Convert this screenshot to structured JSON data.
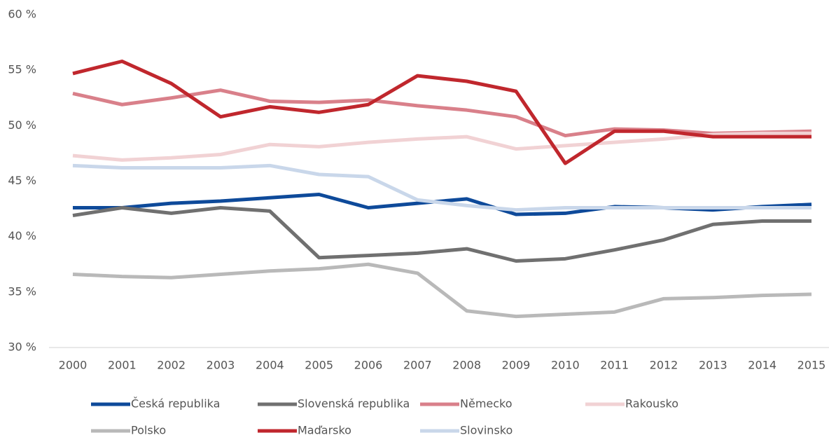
{
  "chart_data": {
    "type": "line",
    "categories": [
      "2000",
      "2001",
      "2002",
      "2003",
      "2004",
      "2005",
      "2006",
      "2007",
      "2008",
      "2009",
      "2010",
      "2011",
      "2012",
      "2013",
      "2014",
      "2015"
    ],
    "series": [
      {
        "name": "Česká republika",
        "color": "#0e4a9a",
        "values": [
          42.6,
          42.6,
          43.0,
          43.2,
          43.5,
          43.8,
          42.6,
          43.0,
          43.4,
          42.0,
          42.1,
          42.7,
          42.6,
          42.4,
          42.7,
          42.9
        ]
      },
      {
        "name": "Slovenská republika",
        "color": "#707070",
        "values": [
          41.9,
          42.6,
          42.1,
          42.6,
          42.3,
          38.1,
          38.3,
          38.5,
          38.9,
          37.8,
          38.0,
          38.8,
          39.7,
          41.1,
          41.4,
          41.4
        ]
      },
      {
        "name": "Německo",
        "color": "#d9808a",
        "values": [
          52.9,
          51.9,
          52.5,
          53.2,
          52.2,
          52.1,
          52.3,
          51.8,
          51.4,
          50.8,
          49.1,
          49.7,
          49.6,
          49.3,
          49.4,
          49.5
        ]
      },
      {
        "name": "Rakousko",
        "color": "#f1d2d4",
        "values": [
          47.3,
          46.9,
          47.1,
          47.4,
          48.3,
          48.1,
          48.5,
          48.8,
          49.0,
          47.9,
          48.2,
          48.5,
          48.8,
          49.2,
          49.3,
          49.3
        ]
      },
      {
        "name": "Polsko",
        "color": "#b9b9b9",
        "values": [
          36.6,
          36.4,
          36.3,
          36.6,
          36.9,
          37.1,
          37.5,
          36.7,
          33.3,
          32.8,
          33.0,
          33.2,
          34.4,
          34.5,
          34.7,
          34.8
        ]
      },
      {
        "name": "Maďarsko",
        "color": "#c0272d",
        "values": [
          54.7,
          55.8,
          53.8,
          50.8,
          51.7,
          51.2,
          51.9,
          54.5,
          54.0,
          53.1,
          46.6,
          49.5,
          49.5,
          49.0,
          49.0,
          49.0
        ]
      },
      {
        "name": "Slovinsko",
        "color": "#c9d7ea",
        "values": [
          46.4,
          46.2,
          46.2,
          46.2,
          46.4,
          45.6,
          45.4,
          43.3,
          42.8,
          42.4,
          42.6,
          42.6,
          42.6,
          42.6,
          42.6,
          42.6
        ]
      }
    ],
    "ylim": [
      30,
      60
    ],
    "yticks": [
      {
        "value": 30,
        "label": "30 %"
      },
      {
        "value": 35,
        "label": "35 %"
      },
      {
        "value": 40,
        "label": "40 %"
      },
      {
        "value": 45,
        "label": "45 %"
      },
      {
        "value": 50,
        "label": "50 %"
      },
      {
        "value": 55,
        "label": "55 %"
      },
      {
        "value": 60,
        "label": "60 %"
      }
    ],
    "grid": false,
    "legend": "bottom"
  }
}
